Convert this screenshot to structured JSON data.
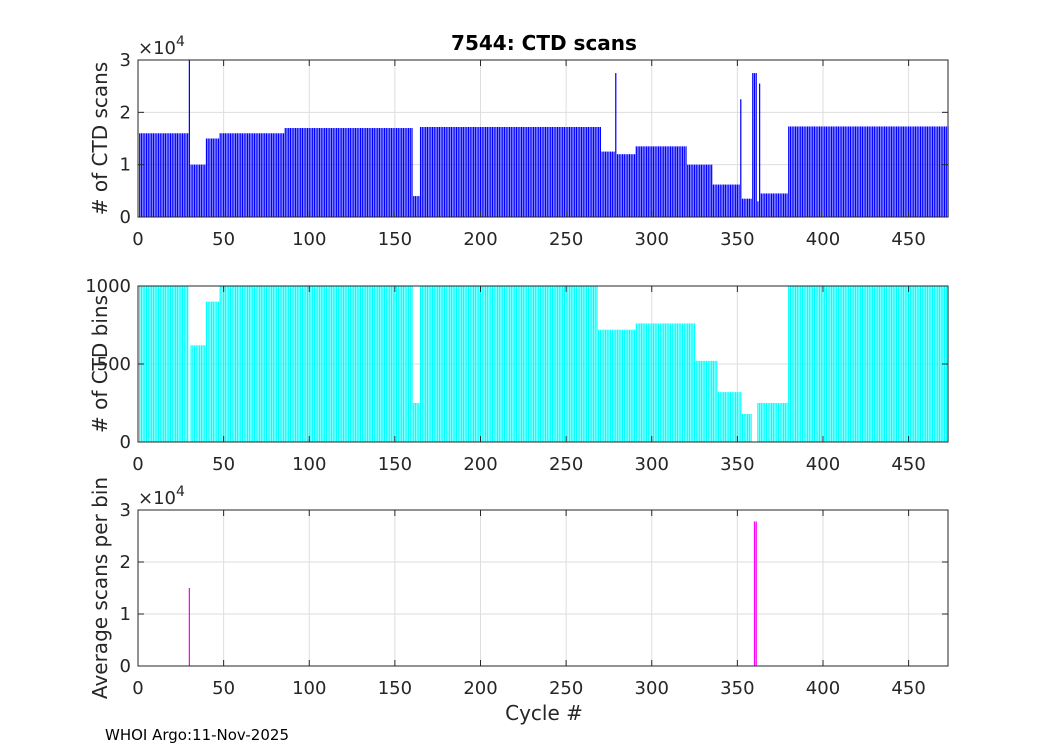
{
  "figure": {
    "title": "7544: CTD scans",
    "xlabel": "Cycle #",
    "footer": "WHOI Argo:11-Nov-2025"
  },
  "chart_data": [
    {
      "type": "bar",
      "ylabel": "# of CTD scans",
      "color": "#0000ff",
      "xlim": [
        0,
        473
      ],
      "ylim": [
        0,
        30000
      ],
      "xticks": [
        0,
        50,
        100,
        150,
        200,
        250,
        300,
        350,
        400,
        450
      ],
      "yticks": [
        0,
        10000,
        20000,
        30000
      ],
      "ytick_labels": [
        "0",
        "1",
        "2",
        "3"
      ],
      "exponent": "4",
      "segments": [
        {
          "from": 1,
          "to": 29,
          "value": 16000
        },
        {
          "from": 30,
          "to": 30,
          "value": 30000
        },
        {
          "from": 31,
          "to": 39,
          "value": 10000
        },
        {
          "from": 40,
          "to": 47,
          "value": 15000
        },
        {
          "from": 48,
          "to": 85,
          "value": 16000
        },
        {
          "from": 86,
          "to": 160,
          "value": 17000
        },
        {
          "from": 161,
          "to": 164,
          "value": 4000
        },
        {
          "from": 165,
          "to": 270,
          "value": 17200
        },
        {
          "from": 271,
          "to": 278,
          "value": 12500
        },
        {
          "from": 279,
          "to": 279,
          "value": 27500
        },
        {
          "from": 280,
          "to": 290,
          "value": 12000
        },
        {
          "from": 291,
          "to": 320,
          "value": 13500
        },
        {
          "from": 321,
          "to": 335,
          "value": 10000
        },
        {
          "from": 336,
          "to": 351,
          "value": 6200
        },
        {
          "from": 352,
          "to": 352,
          "value": 22500
        },
        {
          "from": 353,
          "to": 358,
          "value": 3500
        },
        {
          "from": 359,
          "to": 361,
          "value": 27500
        },
        {
          "from": 362,
          "to": 362,
          "value": 3000
        },
        {
          "from": 363,
          "to": 363,
          "value": 25500
        },
        {
          "from": 364,
          "to": 379,
          "value": 4500
        },
        {
          "from": 380,
          "to": 473,
          "value": 17300
        }
      ]
    },
    {
      "type": "bar",
      "ylabel": "# of CTD bins",
      "color": "#00ffff",
      "xlim": [
        0,
        473
      ],
      "ylim": [
        0,
        1000
      ],
      "xticks": [
        0,
        50,
        100,
        150,
        200,
        250,
        300,
        350,
        400,
        450
      ],
      "yticks": [
        0,
        500,
        1000
      ],
      "ytick_labels": [
        "0",
        "500",
        "1000"
      ],
      "segments": [
        {
          "from": 1,
          "to": 29,
          "value": 1000
        },
        {
          "from": 30,
          "to": 30,
          "value": 0
        },
        {
          "from": 31,
          "to": 39,
          "value": 620
        },
        {
          "from": 40,
          "to": 47,
          "value": 900
        },
        {
          "from": 48,
          "to": 160,
          "value": 1000
        },
        {
          "from": 161,
          "to": 164,
          "value": 250
        },
        {
          "from": 165,
          "to": 268,
          "value": 1000
        },
        {
          "from": 269,
          "to": 290,
          "value": 720
        },
        {
          "from": 291,
          "to": 325,
          "value": 760
        },
        {
          "from": 326,
          "to": 338,
          "value": 520
        },
        {
          "from": 339,
          "to": 352,
          "value": 320
        },
        {
          "from": 353,
          "to": 358,
          "value": 180
        },
        {
          "from": 359,
          "to": 361,
          "value": 0
        },
        {
          "from": 362,
          "to": 379,
          "value": 250
        },
        {
          "from": 380,
          "to": 473,
          "value": 1000
        }
      ]
    },
    {
      "type": "bar",
      "ylabel": "Average scans per bin",
      "color": "#ff00ff",
      "xlim": [
        0,
        473
      ],
      "ylim": [
        0,
        30000
      ],
      "xticks": [
        0,
        50,
        100,
        150,
        200,
        250,
        300,
        350,
        400,
        450
      ],
      "yticks": [
        0,
        10000,
        20000,
        30000
      ],
      "ytick_labels": [
        "0",
        "1",
        "2",
        "3"
      ],
      "exponent": "4",
      "segments": [
        {
          "from": 30,
          "to": 30,
          "value": 15000
        },
        {
          "from": 360,
          "to": 361,
          "value": 27800
        }
      ]
    }
  ]
}
